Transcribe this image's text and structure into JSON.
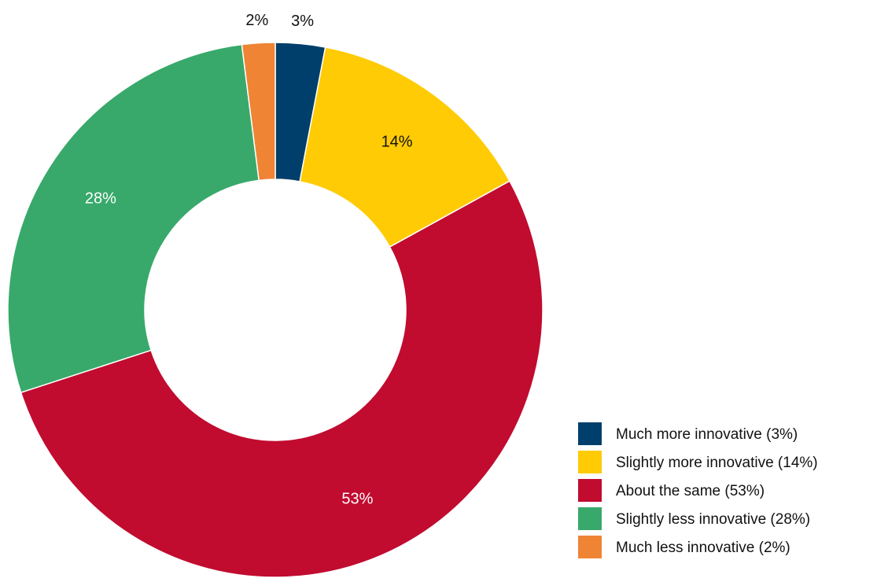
{
  "chart_data": {
    "type": "pie",
    "donut": true,
    "title": "",
    "slices": [
      {
        "label": "Much more innovative (3%)",
        "value": 3,
        "data_label": "3%",
        "color": "#003f6b",
        "label_color": "#111111"
      },
      {
        "label": "Slightly more innovative (14%)",
        "value": 14,
        "data_label": "14%",
        "color": "#ffcb05",
        "label_color": "#111111"
      },
      {
        "label": "About the same (53%)",
        "value": 53,
        "data_label": "53%",
        "color": "#c10b2f",
        "label_color": "#ffffff"
      },
      {
        "label": "Slightly less innovative (28%)",
        "value": 28,
        "data_label": "28%",
        "color": "#38a96a",
        "label_color": "#ffffff"
      },
      {
        "label": "Much less innovative (2%)",
        "value": 2,
        "data_label": "2%",
        "color": "#ef8435",
        "label_color": "#111111"
      }
    ],
    "legend_position": "bottom-right",
    "start_angle": "top, clockwise"
  }
}
